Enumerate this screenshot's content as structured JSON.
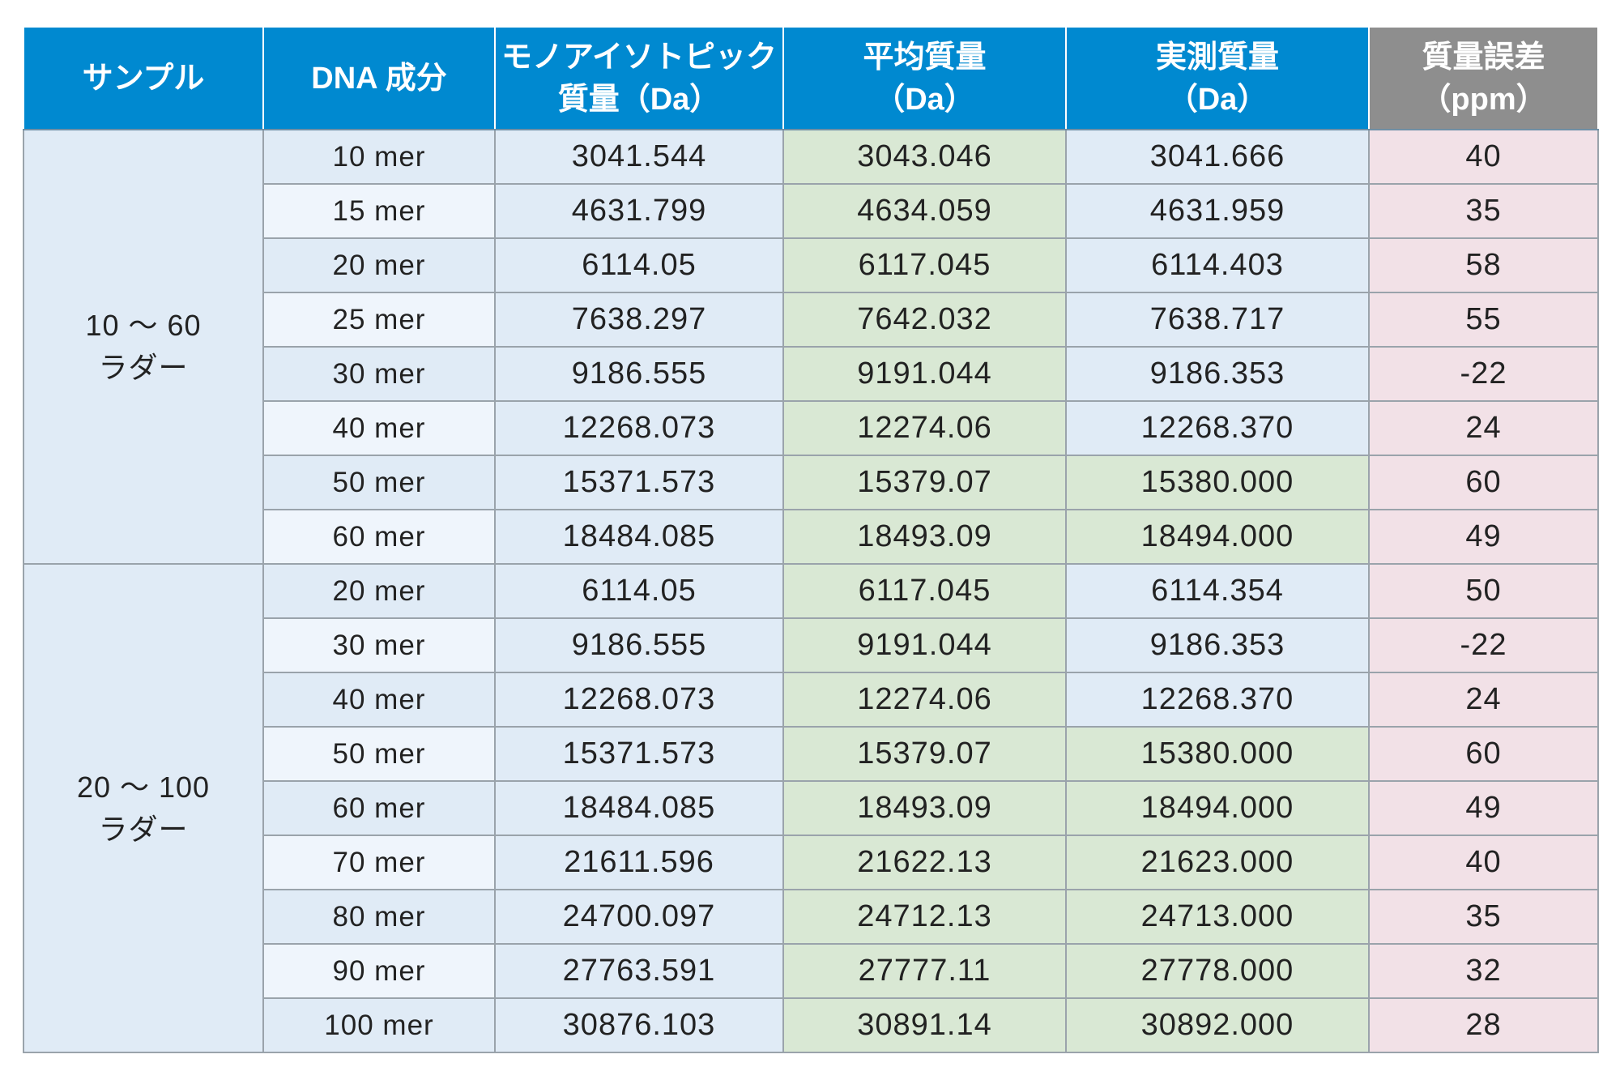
{
  "headers": {
    "sample": "サンプル",
    "dna": "DNA 成分",
    "mono_1": "モノアイソトピック",
    "mono_2": "質量（Da）",
    "avg_1": "平均質量",
    "avg_2": "（Da）",
    "meas_1": "実測質量",
    "meas_2": "（Da）",
    "err_1": "質量誤差",
    "err_2": "（ppm）"
  },
  "groups": [
    {
      "label_1": "10 ～ 60",
      "label_2": "ラダー",
      "rows": [
        {
          "dna": "10 mer",
          "mono": "3041.544",
          "avg": "3043.046",
          "meas": "3041.666",
          "err": "40",
          "meas_highlight": false
        },
        {
          "dna": "15 mer",
          "mono": "4631.799",
          "avg": "4634.059",
          "meas": "4631.959",
          "err": "35",
          "meas_highlight": false
        },
        {
          "dna": "20 mer",
          "mono": "6114.05",
          "avg": "6117.045",
          "meas": "6114.403",
          "err": "58",
          "meas_highlight": false
        },
        {
          "dna": "25 mer",
          "mono": "7638.297",
          "avg": "7642.032",
          "meas": "7638.717",
          "err": "55",
          "meas_highlight": false
        },
        {
          "dna": "30 mer",
          "mono": "9186.555",
          "avg": "9191.044",
          "meas": "9186.353",
          "err": "-22",
          "meas_highlight": false
        },
        {
          "dna": "40 mer",
          "mono": "12268.073",
          "avg": "12274.06",
          "meas": "12268.370",
          "err": "24",
          "meas_highlight": false
        },
        {
          "dna": "50 mer",
          "mono": "15371.573",
          "avg": "15379.07",
          "meas": "15380.000",
          "err": "60",
          "meas_highlight": true
        },
        {
          "dna": "60 mer",
          "mono": "18484.085",
          "avg": "18493.09",
          "meas": "18494.000",
          "err": "49",
          "meas_highlight": true
        }
      ]
    },
    {
      "label_1": "20 ～ 100",
      "label_2": "ラダー",
      "rows": [
        {
          "dna": "20 mer",
          "mono": "6114.05",
          "avg": "6117.045",
          "meas": "6114.354",
          "err": "50",
          "meas_highlight": false
        },
        {
          "dna": "30 mer",
          "mono": "9186.555",
          "avg": "9191.044",
          "meas": "9186.353",
          "err": "-22",
          "meas_highlight": false
        },
        {
          "dna": "40 mer",
          "mono": "12268.073",
          "avg": "12274.06",
          "meas": "12268.370",
          "err": "24",
          "meas_highlight": false
        },
        {
          "dna": "50 mer",
          "mono": "15371.573",
          "avg": "15379.07",
          "meas": "15380.000",
          "err": "60",
          "meas_highlight": true
        },
        {
          "dna": "60 mer",
          "mono": "18484.085",
          "avg": "18493.09",
          "meas": "18494.000",
          "err": "49",
          "meas_highlight": true
        },
        {
          "dna": "70 mer",
          "mono": "21611.596",
          "avg": "21622.13",
          "meas": "21623.000",
          "err": "40",
          "meas_highlight": true
        },
        {
          "dna": "80 mer",
          "mono": "24700.097",
          "avg": "24712.13",
          "meas": "24713.000",
          "err": "35",
          "meas_highlight": true
        },
        {
          "dna": "90 mer",
          "mono": "27763.591",
          "avg": "27777.11",
          "meas": "27778.000",
          "err": "32",
          "meas_highlight": true
        },
        {
          "dna": "100 mer",
          "mono": "30876.103",
          "avg": "30891.14",
          "meas": "30892.000",
          "err": "28",
          "meas_highlight": true
        }
      ]
    }
  ],
  "colors": {
    "header_blue": "#0089d0",
    "header_gray": "#8e8e8e",
    "cell_blue": "#e0ebf6",
    "cell_green": "#d9e8d4",
    "cell_pink": "#f2e1e7"
  }
}
